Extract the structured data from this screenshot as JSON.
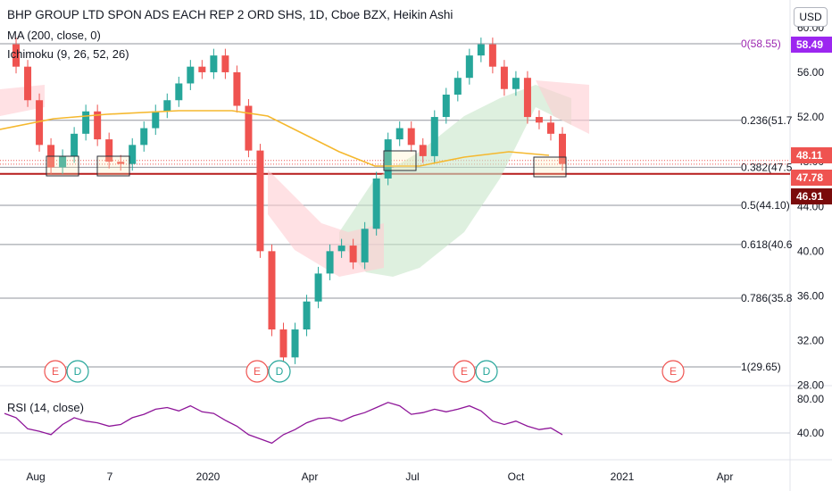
{
  "header": {
    "title": "BHP GROUP LTD SPON ADS EACH REP 2 ORD SHS, 1D, Cboe BZX, Heikin Ashi",
    "ma_label": "MA (200, close, 0)",
    "ichimoku_label": "Ichimoku (9, 26, 52, 26)",
    "rsi_label": "RSI (14, close)",
    "currency_button": "USD"
  },
  "colors": {
    "up": "#26a69a",
    "down": "#ef5350",
    "ma": "#f5b82e",
    "rsi": "#8e1599",
    "cloud_green": "#c8e6c9",
    "cloud_red": "#ffcdd2",
    "fib_line": "#787b86",
    "hline": "#b71c1c",
    "box": "#2a2e39",
    "earnings": "#ef5350",
    "dividend": "#26a69a"
  },
  "price_tags": [
    {
      "text": "58.49",
      "color": "#9c27f0"
    },
    {
      "text": "48.11",
      "color": "#ef5350"
    },
    {
      "text": "47.78",
      "color": "#ef5350"
    },
    {
      "text": "46.91",
      "color": "#7a0b0b"
    }
  ],
  "chart_data": [
    {
      "type": "candlestick",
      "style": "Heikin Ashi",
      "interval": "1D",
      "x_ticks": [
        "Aug",
        "7",
        "2020",
        "Apr",
        "Jul",
        "Oct",
        "2021",
        "Apr"
      ],
      "y_ticks": [
        "60.00",
        "56.00",
        "52.00",
        "48.00",
        "44.00",
        "40.00",
        "36.00",
        "32.00",
        "28.00"
      ],
      "ylim": [
        27,
        61
      ],
      "ma_label": "MA (200, close, 0)",
      "ichimoku_label": "Ichimoku (9, 26, 52, 26)",
      "fib_levels": [
        {
          "label": "0(58.55)",
          "value": 58.55
        },
        {
          "label": "0.236(51.7",
          "value": 51.7
        },
        {
          "label": "0.382(47.5",
          "value": 47.5
        },
        {
          "label": "0.5(44.10)",
          "value": 44.1
        },
        {
          "label": "0.618(40.6",
          "value": 40.6
        },
        {
          "label": "0.786(35.8",
          "value": 35.8
        },
        {
          "label": "1(29.65)",
          "value": 29.65
        }
      ],
      "horizontal_line": 46.91,
      "key_prices": [
        {
          "label": "58.49",
          "value": 58.49
        },
        {
          "label": "48.11",
          "value": 48.11
        },
        {
          "label": "47.78",
          "value": 47.78
        },
        {
          "label": "46.91",
          "value": 46.91
        }
      ],
      "events": [
        {
          "type": "E",
          "label": "E"
        },
        {
          "type": "D",
          "label": "D"
        },
        {
          "type": "E",
          "label": "E"
        },
        {
          "type": "D",
          "label": "D"
        },
        {
          "type": "E",
          "label": "E"
        },
        {
          "type": "D",
          "label": "D"
        },
        {
          "type": "E",
          "label": "E"
        }
      ],
      "close_series": [
        58.5,
        56.5,
        53.5,
        49.5,
        47.5,
        48.5,
        50.5,
        52.5,
        50,
        48,
        47.8,
        49.5,
        51,
        52.5,
        53.5,
        55,
        56.5,
        56,
        57.5,
        56,
        53,
        49,
        40,
        33,
        30.5,
        33,
        35.5,
        38,
        40,
        40.5,
        39,
        42,
        46.5,
        50,
        51,
        49.5,
        48.5,
        52,
        54,
        55.5,
        57.5,
        58.5,
        56.5,
        54.5,
        55.5,
        52,
        51.5,
        50.5,
        47.8
      ]
    },
    {
      "type": "line",
      "title": "RSI (14, close)",
      "y_ticks": [
        "80.00",
        "40.00"
      ],
      "ylim": [
        20,
        88
      ],
      "values": [
        63,
        58,
        45,
        42,
        38,
        50,
        58,
        54,
        52,
        48,
        50,
        58,
        62,
        68,
        70,
        66,
        72,
        65,
        63,
        55,
        48,
        38,
        33,
        28,
        38,
        44,
        52,
        57,
        58,
        54,
        60,
        64,
        70,
        76,
        72,
        62,
        64,
        68,
        65,
        68,
        72,
        66,
        54,
        50,
        54,
        48,
        44,
        46,
        38
      ]
    }
  ]
}
